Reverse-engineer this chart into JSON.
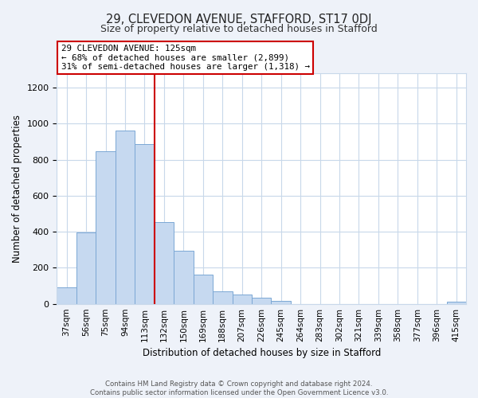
{
  "title": "29, CLEVEDON AVENUE, STAFFORD, ST17 0DJ",
  "subtitle": "Size of property relative to detached houses in Stafford",
  "xlabel": "Distribution of detached houses by size in Stafford",
  "ylabel": "Number of detached properties",
  "bar_labels": [
    "37sqm",
    "56sqm",
    "75sqm",
    "94sqm",
    "113sqm",
    "132sqm",
    "150sqm",
    "169sqm",
    "188sqm",
    "207sqm",
    "226sqm",
    "245sqm",
    "264sqm",
    "283sqm",
    "302sqm",
    "321sqm",
    "339sqm",
    "358sqm",
    "377sqm",
    "396sqm",
    "415sqm"
  ],
  "bar_heights": [
    90,
    395,
    845,
    960,
    885,
    455,
    295,
    160,
    70,
    50,
    35,
    18,
    0,
    0,
    0,
    0,
    0,
    0,
    0,
    0,
    10
  ],
  "bar_color": "#c6d9f0",
  "bar_edge_color": "#7ba7d4",
  "vline_color": "#cc0000",
  "vline_x": 4.5,
  "annotation_line1": "29 CLEVEDON AVENUE: 125sqm",
  "annotation_line2": "← 68% of detached houses are smaller (2,899)",
  "annotation_line3": "31% of semi-detached houses are larger (1,318) →",
  "annotation_box_edge": "#cc0000",
  "ylim": [
    0,
    1280
  ],
  "yticks": [
    0,
    200,
    400,
    600,
    800,
    1000,
    1200
  ],
  "footer_line1": "Contains HM Land Registry data © Crown copyright and database right 2024.",
  "footer_line2": "Contains public sector information licensed under the Open Government Licence v3.0.",
  "bg_color": "#eef2f9",
  "plot_bg_color": "#ffffff",
  "grid_color": "#c8d8ea"
}
